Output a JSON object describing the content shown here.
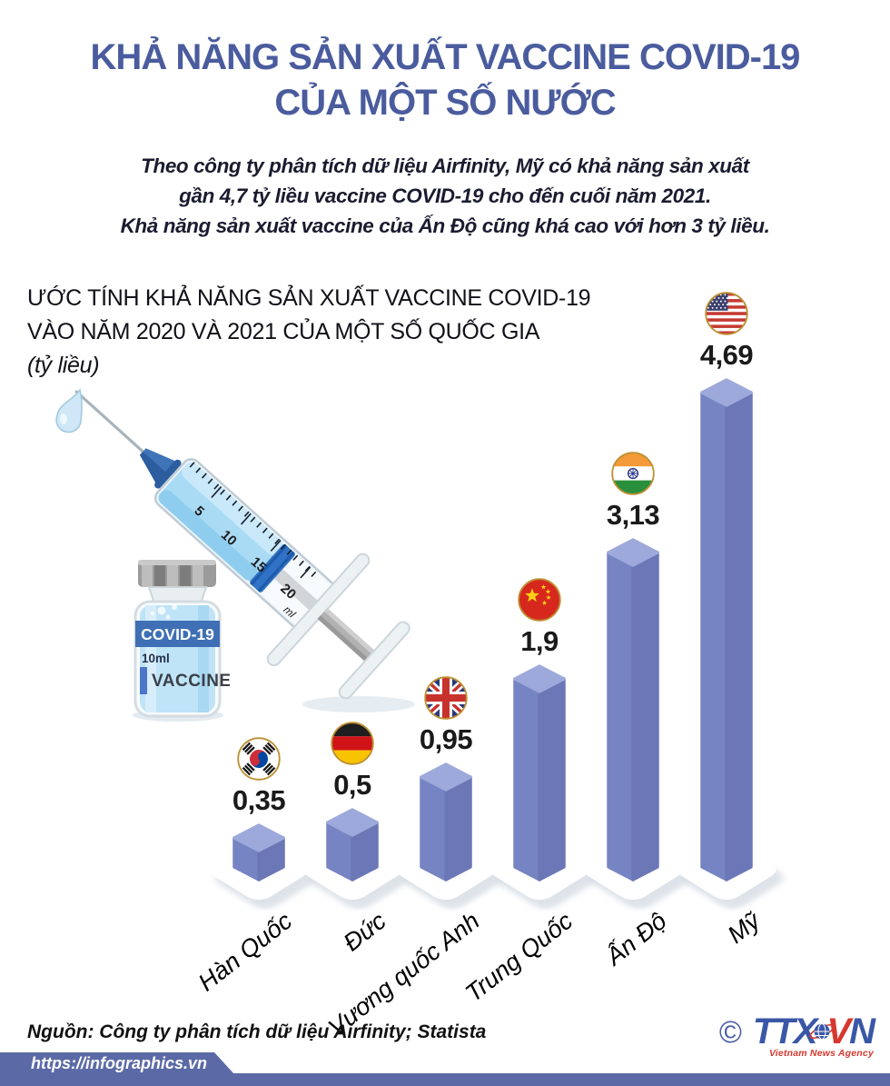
{
  "header": {
    "title_lines": [
      "KHẢ NĂNG SẢN XUẤT VACCINE COVID-19",
      "CỦA MỘT SỐ NƯỚC"
    ],
    "subtitle_lines": [
      "Theo công ty phân tích dữ liệu Airfinity, Mỹ có khả năng sản xuất",
      "gần 4,7 tỷ liều vaccine COVID-19 cho đến cuối năm 2021.",
      "Khả năng sản xuất vaccine của Ấn Độ cũng khá cao với hơn 3 tỷ liều."
    ]
  },
  "chart_data": {
    "type": "bar",
    "title_lines": [
      "ƯỚC TÍNH KHẢ NĂNG SẢN XUẤT VACCINE COVID-19",
      "VÀO NĂM 2020 VÀ 2021 CỦA MỘT SỐ QUỐC GIA"
    ],
    "unit_note": "(tỷ liều)",
    "ylabel": "tỷ liều",
    "categories": [
      "Hàn Quốc",
      "Đức",
      "Vương quốc Anh",
      "Trung Quốc",
      "Ấn Độ",
      "Mỹ"
    ],
    "values": [
      0.35,
      0.5,
      0.95,
      1.9,
      3.13,
      4.69
    ],
    "value_labels": [
      "0,35",
      "0,5",
      "0,95",
      "1,9",
      "3,13",
      "4,69"
    ],
    "flags": [
      "south-korea",
      "germany",
      "united-kingdom",
      "china",
      "india",
      "united-states"
    ],
    "colors": {
      "bar_top": "#9da9da",
      "bar_left": "#7684c3",
      "bar_right": "#6b77b6",
      "flag_ring": "#bd9134"
    }
  },
  "illustration": {
    "syringe_scale": [
      "5",
      "10",
      "15",
      "20"
    ],
    "syringe_unit": "ml",
    "vial_title": "COVID-19",
    "vial_volume": "10ml",
    "vial_text": "VACCINE"
  },
  "footer": {
    "source": "Nguồn: Công ty phân tích dữ liệu Airfinity; Statista",
    "url": "https://infographics.vn",
    "copyright": "©",
    "logo": {
      "ttx": "TTX",
      "v": "V",
      "n": "N",
      "tagline": "Vietnam News Agency"
    },
    "bar_color": "#5b6aa6"
  }
}
